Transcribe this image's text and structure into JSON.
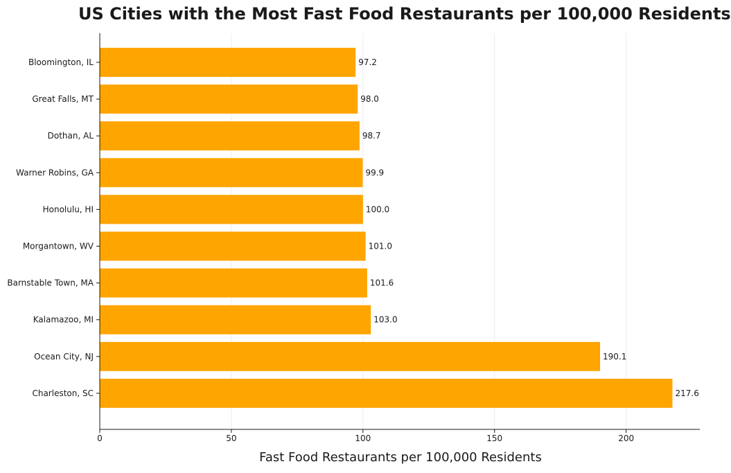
{
  "chart_data": {
    "type": "bar",
    "orientation": "horizontal",
    "title": "US Cities with the Most Fast Food Restaurants per 100,000 Residents",
    "xlabel": "Fast Food Restaurants per 100,000 Residents",
    "ylabel": "",
    "xlim": [
      0,
      228
    ],
    "xticks": [
      0,
      50,
      100,
      150,
      200
    ],
    "grid": "vertical",
    "bar_color": "#FFA500",
    "categories": [
      "Bloomington, IL",
      "Great Falls, MT",
      "Dothan, AL",
      "Warner Robins, GA",
      "Honolulu, HI",
      "Morgantown, WV",
      "Barnstable Town, MA",
      "Kalamazoo, MI",
      "Ocean City, NJ",
      "Charleston, SC"
    ],
    "values": [
      97.2,
      98.0,
      98.7,
      99.9,
      100.0,
      101.0,
      101.6,
      103.0,
      190.1,
      217.6
    ],
    "data_labels": [
      "97.2",
      "98.0",
      "98.7",
      "99.9",
      "100.0",
      "101.0",
      "101.6",
      "103.0",
      "190.1",
      "217.6"
    ]
  }
}
